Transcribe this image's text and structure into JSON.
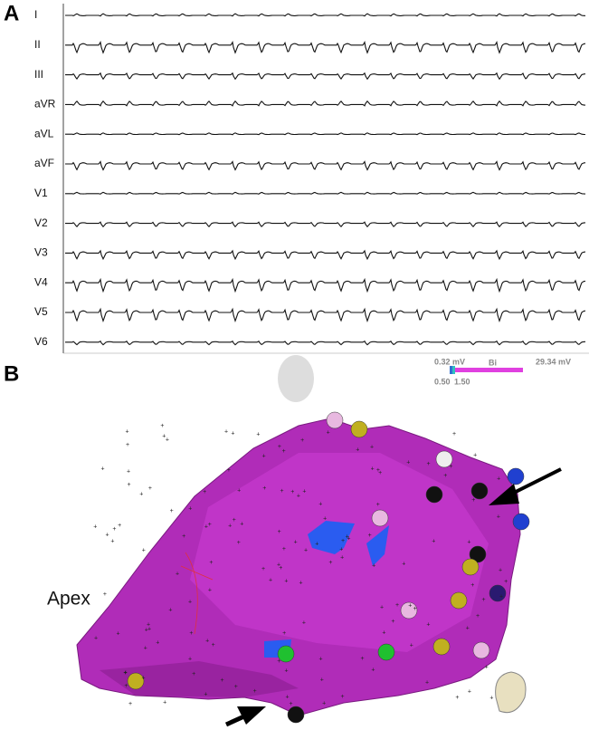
{
  "panels": {
    "a": {
      "label": "A",
      "leads": [
        "I",
        "II",
        "III",
        "aVR",
        "aVL",
        "aVF",
        "V1",
        "V2",
        "V3",
        "V4",
        "V5",
        "V6"
      ]
    },
    "b": {
      "label": "B",
      "scale": {
        "min": "0.32 mV",
        "type": "Bi",
        "max": "29.34 mV",
        "ticks": [
          "0.50",
          "1.50"
        ]
      },
      "annotation": "Apex"
    }
  }
}
